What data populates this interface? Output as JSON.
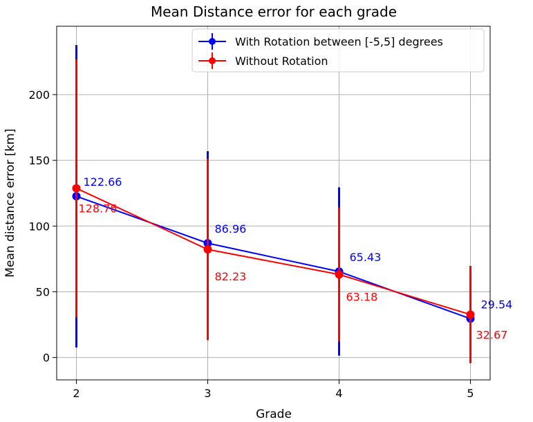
{
  "chart_data": {
    "type": "line",
    "title": "Mean Distance error for each grade",
    "xlabel": "Grade",
    "ylabel": "Mean distance error [km]",
    "x": [
      2,
      3,
      4,
      5
    ],
    "xticks": [
      "2",
      "3",
      "4",
      "5"
    ],
    "yticks": [
      "0",
      "50",
      "100",
      "150",
      "200"
    ],
    "xlim": [
      1.85,
      5.15
    ],
    "ylim": [
      -17,
      252
    ],
    "grid": true,
    "legend_position": "top-right",
    "series": [
      {
        "name": "With Rotation between [-5,5] degrees",
        "color": "#0000ff",
        "values": [
          122.66,
          86.96,
          65.43,
          29.54
        ],
        "labels": [
          "122.66",
          "86.96",
          "65.43",
          "29.54"
        ],
        "error": [
          115,
          70,
          64,
          31
        ]
      },
      {
        "name": "Without Rotation",
        "color": "#ff0000",
        "values": [
          128.76,
          82.23,
          63.18,
          32.67
        ],
        "labels": [
          "128.76",
          "82.23",
          "63.18",
          "32.67"
        ],
        "error": [
          98,
          69,
          51,
          37
        ]
      }
    ]
  }
}
